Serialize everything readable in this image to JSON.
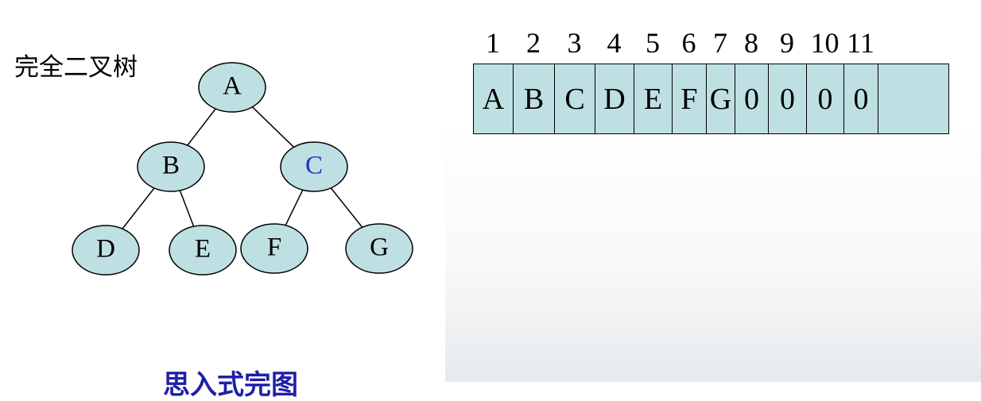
{
  "title": "完全二叉树",
  "tree": {
    "nodes": [
      {
        "id": "A",
        "label": "A",
        "color": "#000000"
      },
      {
        "id": "B",
        "label": "B",
        "color": "#000000"
      },
      {
        "id": "C",
        "label": "C",
        "color": "#2b2bd0"
      },
      {
        "id": "D",
        "label": "D",
        "color": "#000000"
      },
      {
        "id": "E",
        "label": "E",
        "color": "#000000"
      },
      {
        "id": "F",
        "label": "F",
        "color": "#000000"
      },
      {
        "id": "G",
        "label": "G",
        "color": "#000000"
      }
    ],
    "edges": [
      [
        "A",
        "B"
      ],
      [
        "A",
        "C"
      ],
      [
        "B",
        "D"
      ],
      [
        "B",
        "E"
      ],
      [
        "C",
        "F"
      ],
      [
        "C",
        "G"
      ]
    ],
    "fill": "#bfe0e2"
  },
  "array": {
    "indices": [
      "1",
      "2",
      "3",
      "4",
      "5",
      "6",
      "7",
      "8",
      "9",
      "10",
      "11"
    ],
    "cells": [
      "A",
      "B",
      "C",
      "D",
      "E",
      "F",
      "G",
      "0",
      "0",
      "0",
      "0",
      ""
    ],
    "fill": "#bfe0e2"
  },
  "footer": "思入式完图"
}
